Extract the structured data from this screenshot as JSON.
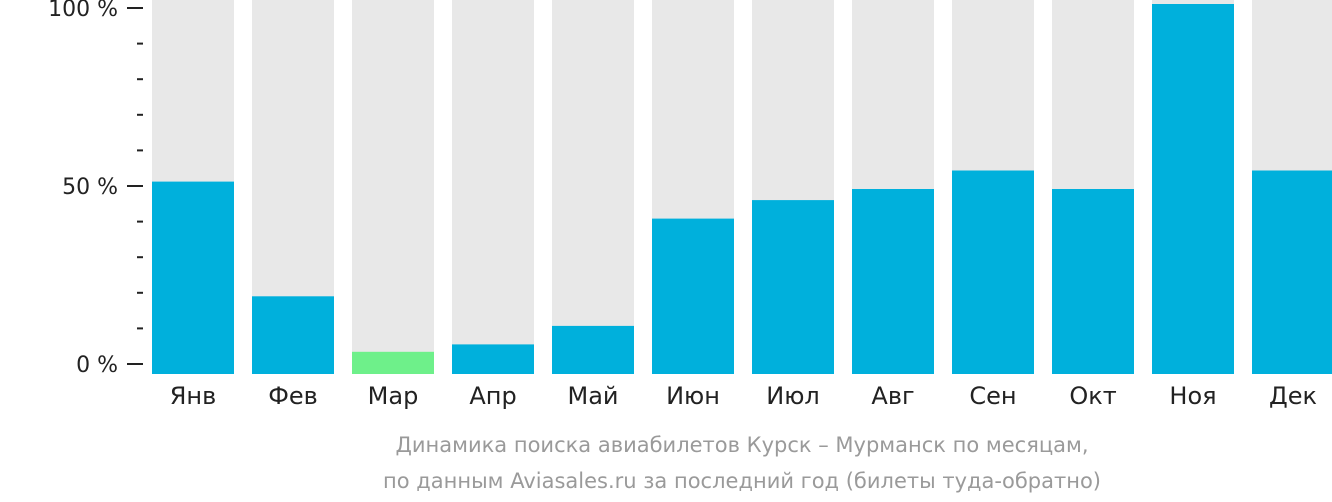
{
  "chart_data": {
    "type": "bar",
    "categories": [
      "Янв",
      "Фев",
      "Мар",
      "Апр",
      "Май",
      "Июн",
      "Июл",
      "Авг",
      "Сен",
      "Окт",
      "Ноя",
      "Дек"
    ],
    "values": [
      52,
      21,
      6,
      8,
      13,
      42,
      47,
      50,
      55,
      50,
      100,
      55
    ],
    "ylim": [
      0,
      100
    ],
    "yticks": [
      {
        "value": 0,
        "label": "0 %"
      },
      {
        "value": 50,
        "label": "50 %"
      },
      {
        "value": 100,
        "label": "100 %"
      }
    ],
    "minor_tick_step": 10,
    "highlight_category": "Мар",
    "caption_lines": [
      "Динамика поиска авиабилетов Курск – Мурманск по месяцам,",
      "по данным Aviasales.ru за последний год (билеты туда-обратно)"
    ],
    "colors": {
      "bar": "#00b0dc",
      "bar_highlight": "#6ef08a",
      "track": "#e8e8e8",
      "axis": "#222222"
    }
  }
}
